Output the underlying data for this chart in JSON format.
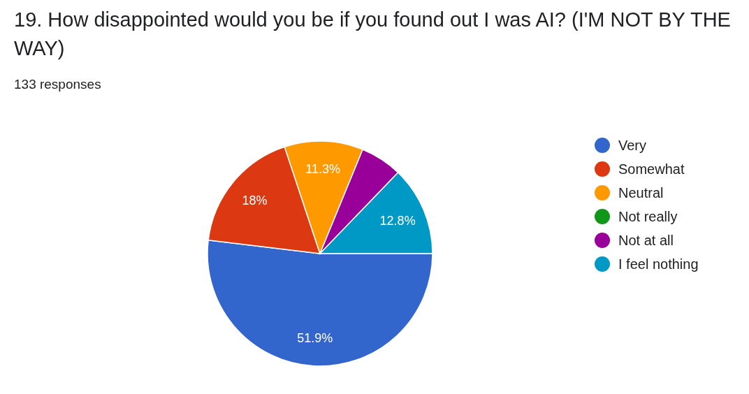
{
  "chart_data": {
    "type": "pie",
    "title": "19. How disappointed would you be if you found out I was AI? (I'M NOT BY THE WAY)",
    "subtitle": "133 responses",
    "categories": [
      "Very",
      "Somewhat",
      "Neutral",
      "Not really",
      "Not at all",
      "I feel nothing"
    ],
    "values": [
      51.9,
      18,
      11.3,
      0,
      6.0,
      12.8
    ],
    "colors": [
      "#3366cc",
      "#dc3912",
      "#ff9900",
      "#109618",
      "#990099",
      "#0099c6"
    ],
    "value_labels": [
      "51.9%",
      "18%",
      "11.3%",
      null,
      null,
      "12.8%"
    ],
    "legend": "right"
  }
}
